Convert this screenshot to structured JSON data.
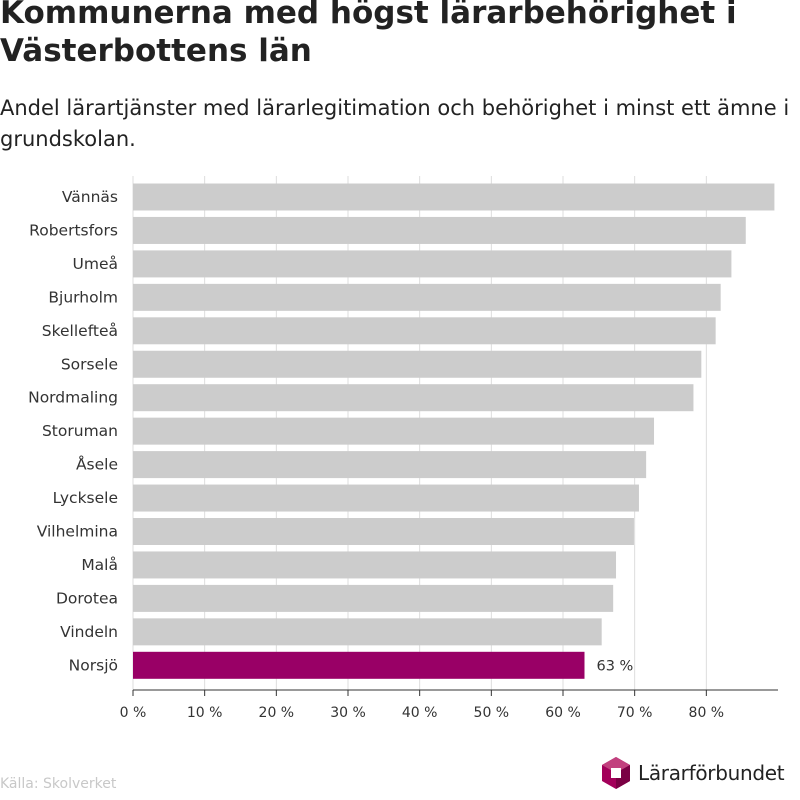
{
  "title": "Kommunerna med högst lärarbehörighet i Västerbottens län",
  "subtitle": "Andel lärartjänster med lärarlegitimation och behörighet i minst ett ämne i grundskolan.",
  "source": "Källa: Skolverket",
  "brand": {
    "name": "Lärarförbundet",
    "color": "#a3005a"
  },
  "colors": {
    "bar": "#cccccc",
    "highlight": "#990066",
    "grid": "#dddddd",
    "axis": "#333333"
  },
  "chart_data": {
    "type": "bar",
    "orientation": "horizontal",
    "categories": [
      "Vännäs",
      "Robertsfors",
      "Umeå",
      "Bjurholm",
      "Skellefteå",
      "Sorsele",
      "Nordmaling",
      "Storuman",
      "Åsele",
      "Lycksele",
      "Vilhelmina",
      "Malå",
      "Dorotea",
      "Vindeln",
      "Norsjö"
    ],
    "values": [
      89.5,
      85.5,
      83.5,
      82,
      81.3,
      79.3,
      78.2,
      72.7,
      71.6,
      70.6,
      69.9,
      67.4,
      67,
      65.4,
      63
    ],
    "highlight_index": 14,
    "data_labels": [
      {
        "index": 14,
        "text": "63 %"
      }
    ],
    "xlim": [
      0,
      90
    ],
    "xticks": [
      0,
      10,
      20,
      30,
      40,
      50,
      60,
      70,
      80
    ],
    "xtick_labels": [
      "0 %",
      "10 %",
      "20 %",
      "30 %",
      "40 %",
      "50 %",
      "60 %",
      "70 %",
      "80 %"
    ],
    "grid": true,
    "xlabel": "",
    "ylabel": ""
  }
}
